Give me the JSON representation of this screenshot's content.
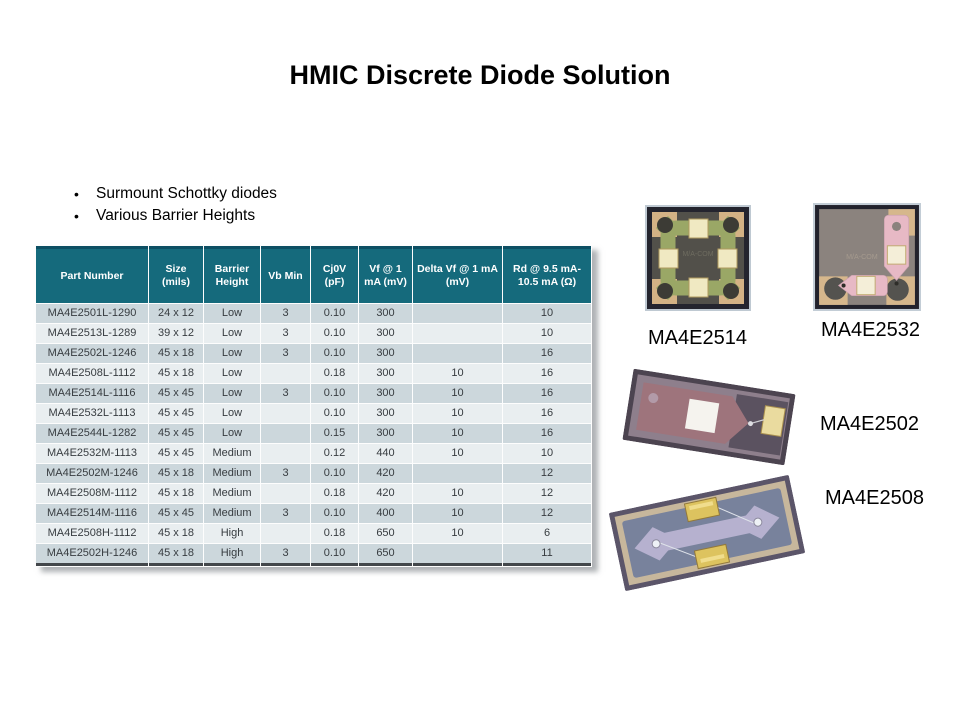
{
  "slide": {
    "title": "HMIC Discrete Diode Solution",
    "bullets": [
      "Surmount Schottky diodes",
      "Various Barrier Heights"
    ]
  },
  "table": {
    "headers": [
      "Part Number",
      "Size (mils)",
      "Barrier Height",
      "Vb Min",
      "Cj0V (pF)",
      "Vf @ 1 mA (mV)",
      "Delta Vf @ 1 mA (mV)",
      "Rd @ 9.5 mA-10.5 mA (Ω)"
    ],
    "rows": [
      [
        "MA4E2501L-1290",
        "24 x 12",
        "Low",
        "3",
        "0.10",
        "300",
        "",
        "10"
      ],
      [
        "MA4E2513L-1289",
        "39 x 12",
        "Low",
        "3",
        "0.10",
        "300",
        "",
        "10"
      ],
      [
        "MA4E2502L-1246",
        "45 x 18",
        "Low",
        "3",
        "0.10",
        "300",
        "",
        "16"
      ],
      [
        "MA4E2508L-1112",
        "45 x 18",
        "Low",
        "",
        "0.18",
        "300",
        "10",
        "16"
      ],
      [
        "MA4E2514L-1116",
        "45 x 45",
        "Low",
        "3",
        "0.10",
        "300",
        "10",
        "16"
      ],
      [
        "MA4E2532L-1113",
        "45 x 45",
        "Low",
        "",
        "0.10",
        "300",
        "10",
        "16"
      ],
      [
        "MA4E2544L-1282",
        "45 x 45",
        "Low",
        "",
        "0.15",
        "300",
        "10",
        "16"
      ],
      [
        "MA4E2532M-1113",
        "45 x 45",
        "Medium",
        "",
        "0.12",
        "440",
        "10",
        "10"
      ],
      [
        "MA4E2502M-1246",
        "45 x 18",
        "Medium",
        "3",
        "0.10",
        "420",
        "",
        "12"
      ],
      [
        "MA4E2508M-1112",
        "45 x 18",
        "Medium",
        "",
        "0.18",
        "420",
        "10",
        "12"
      ],
      [
        "MA4E2514M-1116",
        "45 x 45",
        "Medium",
        "3",
        "0.10",
        "400",
        "10",
        "12"
      ],
      [
        "MA4E2508H-1112",
        "45 x 18",
        "High",
        "",
        "0.18",
        "650",
        "10",
        "6"
      ],
      [
        "MA4E2502H-1246",
        "45 x 18",
        "High",
        "3",
        "0.10",
        "650",
        "",
        "11"
      ]
    ]
  },
  "chips": [
    {
      "label": "MA4E2514",
      "watermark": "M/A-COM"
    },
    {
      "label": "MA4E2532",
      "watermark": "M/A-COM"
    },
    {
      "label": "MA4E2502"
    },
    {
      "label": "MA4E2508"
    }
  ],
  "colors": {
    "table_header_bg": "#156a7c",
    "table_row_odd": "#ccd7dc",
    "table_row_even": "#e9eef0",
    "chip_gold_pad": "#f0e9c2",
    "chip_green_metal": "#9aa766",
    "chip_pink_metal": "#e7b9c5",
    "chip_mauve_body": "#9e747c",
    "chip_lavender_metal": "#b6b1cf"
  }
}
